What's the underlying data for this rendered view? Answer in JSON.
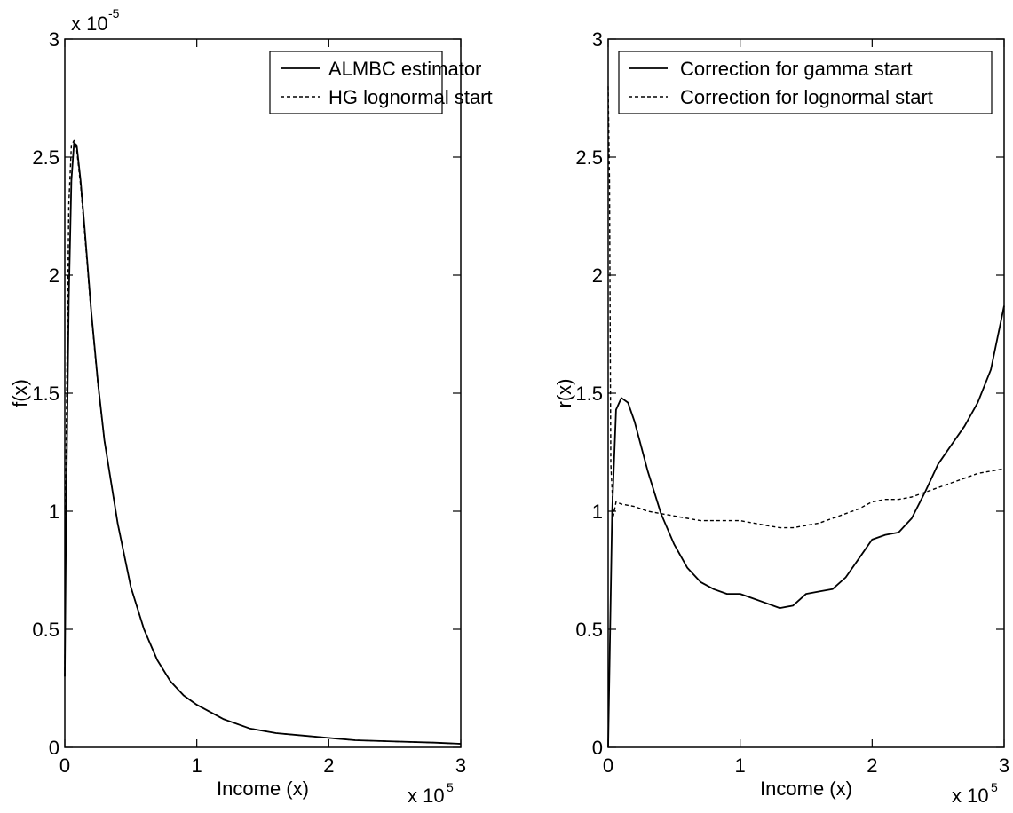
{
  "chart_data": [
    {
      "type": "line",
      "xlabel": "Income (x)",
      "ylabel": "f(x)",
      "x_exponent_label": "x 10",
      "x_exponent_power": "5",
      "y_exponent_label": "x 10",
      "y_exponent_power": "-5",
      "xlim": [
        0,
        3
      ],
      "ylim": [
        0,
        3
      ],
      "x_ticks": [
        "0",
        "1",
        "2",
        "3"
      ],
      "y_ticks": [
        "0",
        "0.5",
        "1",
        "1.5",
        "2",
        "2.5",
        "3"
      ],
      "grid": false,
      "legend_position": "top-right",
      "series": [
        {
          "name": "ALMBC estimator",
          "style": "solid",
          "x": [
            0,
            0.01,
            0.03,
            0.05,
            0.07,
            0.09,
            0.12,
            0.15,
            0.2,
            0.25,
            0.3,
            0.4,
            0.5,
            0.6,
            0.7,
            0.8,
            0.9,
            1.0,
            1.2,
            1.4,
            1.6,
            1.8,
            2.0,
            2.2,
            2.5,
            2.8,
            3.0
          ],
          "values": [
            0.3,
            1.0,
            1.9,
            2.4,
            2.56,
            2.55,
            2.4,
            2.2,
            1.85,
            1.55,
            1.3,
            0.95,
            0.68,
            0.5,
            0.37,
            0.28,
            0.22,
            0.18,
            0.12,
            0.08,
            0.06,
            0.05,
            0.04,
            0.03,
            0.025,
            0.02,
            0.015
          ]
        },
        {
          "name": "HG lognormal start",
          "style": "dashed",
          "x": [
            0,
            0.01,
            0.03,
            0.05,
            0.07,
            0.09,
            0.12,
            0.15,
            0.2,
            0.25,
            0.3,
            0.4,
            0.5,
            0.6,
            0.7,
            0.8,
            0.9,
            1.0,
            1.2,
            1.4,
            1.6,
            1.8,
            2.0,
            2.2,
            2.5,
            2.8,
            3.0
          ],
          "values": [
            0.3,
            1.3,
            2.3,
            2.55,
            2.57,
            2.53,
            2.38,
            2.18,
            1.84,
            1.54,
            1.3,
            0.95,
            0.68,
            0.5,
            0.37,
            0.28,
            0.22,
            0.18,
            0.12,
            0.08,
            0.06,
            0.05,
            0.04,
            0.03,
            0.025,
            0.02,
            0.015
          ]
        }
      ]
    },
    {
      "type": "line",
      "xlabel": "Income (x)",
      "ylabel": "r(x)",
      "x_exponent_label": "x 10",
      "x_exponent_power": "5",
      "xlim": [
        0,
        3
      ],
      "ylim": [
        0,
        3
      ],
      "x_ticks": [
        "0",
        "1",
        "2",
        "3"
      ],
      "y_ticks": [
        "0",
        "0.5",
        "1",
        "1.5",
        "2",
        "2.5",
        "3"
      ],
      "grid": false,
      "legend_position": "top-right",
      "series": [
        {
          "name": "Correction for gamma start",
          "style": "solid",
          "x": [
            0,
            0.03,
            0.06,
            0.1,
            0.15,
            0.2,
            0.3,
            0.4,
            0.5,
            0.6,
            0.7,
            0.8,
            0.9,
            1.0,
            1.1,
            1.2,
            1.3,
            1.4,
            1.5,
            1.6,
            1.7,
            1.8,
            1.9,
            2.0,
            2.1,
            2.2,
            2.3,
            2.4,
            2.5,
            2.6,
            2.7,
            2.8,
            2.9,
            3.0
          ],
          "values": [
            0.0,
            1.0,
            1.43,
            1.48,
            1.46,
            1.38,
            1.17,
            0.99,
            0.86,
            0.76,
            0.7,
            0.67,
            0.65,
            0.65,
            0.63,
            0.61,
            0.59,
            0.6,
            0.65,
            0.66,
            0.67,
            0.72,
            0.8,
            0.88,
            0.9,
            0.91,
            0.97,
            1.08,
            1.2,
            1.28,
            1.36,
            1.46,
            1.6,
            1.87
          ]
        },
        {
          "name": "Correction for lognormal start",
          "style": "dashed",
          "x": [
            0,
            0.01,
            0.02,
            0.04,
            0.06,
            0.1,
            0.2,
            0.3,
            0.4,
            0.5,
            0.6,
            0.7,
            0.8,
            0.9,
            1.0,
            1.1,
            1.2,
            1.3,
            1.4,
            1.5,
            1.6,
            1.7,
            1.8,
            1.9,
            2.0,
            2.1,
            2.2,
            2.3,
            2.4,
            2.5,
            2.6,
            2.7,
            2.8,
            2.9,
            3.0
          ],
          "values": [
            2.8,
            2.4,
            1.2,
            0.98,
            1.04,
            1.03,
            1.02,
            1.0,
            0.99,
            0.98,
            0.97,
            0.96,
            0.96,
            0.96,
            0.96,
            0.95,
            0.94,
            0.93,
            0.93,
            0.94,
            0.95,
            0.97,
            0.99,
            1.01,
            1.04,
            1.05,
            1.05,
            1.06,
            1.08,
            1.1,
            1.12,
            1.14,
            1.16,
            1.17,
            1.18
          ]
        }
      ]
    }
  ]
}
